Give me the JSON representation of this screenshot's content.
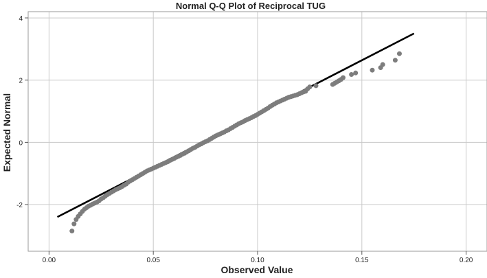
{
  "chart_data": {
    "type": "scatter",
    "title": "Normal Q-Q Plot of Reciprocal TUG",
    "xlabel": "Observed Value",
    "ylabel": "Expected Normal",
    "xlim": [
      -0.01,
      0.21
    ],
    "ylim": [
      -3.5,
      4.2
    ],
    "x_ticks": [
      "0.00",
      "0.05",
      "0.10",
      "0.15",
      "0.20"
    ],
    "x_tick_values": [
      0.0,
      0.05,
      0.1,
      0.15,
      0.2
    ],
    "y_ticks": [
      "-2",
      "0",
      "2",
      "4"
    ],
    "y_tick_values": [
      -2,
      0,
      2,
      4
    ],
    "grid": true,
    "reference_line": {
      "x": [
        0.004,
        0.175
      ],
      "y": [
        -2.4,
        3.5
      ]
    },
    "series": [
      {
        "marker_color": "#7d7d7d",
        "points": [
          [
            0.011,
            -2.85
          ],
          [
            0.012,
            -2.62
          ],
          [
            0.013,
            -2.48
          ],
          [
            0.014,
            -2.38
          ],
          [
            0.015,
            -2.3
          ],
          [
            0.016,
            -2.22
          ],
          [
            0.017,
            -2.15
          ],
          [
            0.018,
            -2.1
          ],
          [
            0.019,
            -2.05
          ],
          [
            0.02,
            -2.02
          ],
          [
            0.021,
            -1.98
          ],
          [
            0.022,
            -1.95
          ],
          [
            0.023,
            -1.92
          ],
          [
            0.024,
            -1.88
          ],
          [
            0.025,
            -1.82
          ],
          [
            0.026,
            -1.78
          ],
          [
            0.027,
            -1.73
          ],
          [
            0.028,
            -1.68
          ],
          [
            0.029,
            -1.64
          ],
          [
            0.03,
            -1.6
          ],
          [
            0.031,
            -1.56
          ],
          [
            0.032,
            -1.52
          ],
          [
            0.033,
            -1.49
          ],
          [
            0.034,
            -1.46
          ],
          [
            0.035,
            -1.42
          ],
          [
            0.036,
            -1.38
          ],
          [
            0.037,
            -1.34
          ],
          [
            0.038,
            -1.28
          ],
          [
            0.039,
            -1.24
          ],
          [
            0.04,
            -1.2
          ],
          [
            0.041,
            -1.16
          ],
          [
            0.042,
            -1.12
          ],
          [
            0.043,
            -1.08
          ],
          [
            0.044,
            -1.04
          ],
          [
            0.045,
            -1.0
          ],
          [
            0.046,
            -0.96
          ],
          [
            0.047,
            -0.92
          ],
          [
            0.048,
            -0.89
          ],
          [
            0.049,
            -0.86
          ],
          [
            0.05,
            -0.83
          ],
          [
            0.051,
            -0.8
          ],
          [
            0.052,
            -0.77
          ],
          [
            0.053,
            -0.74
          ],
          [
            0.054,
            -0.71
          ],
          [
            0.055,
            -0.68
          ],
          [
            0.056,
            -0.65
          ],
          [
            0.057,
            -0.62
          ],
          [
            0.058,
            -0.58
          ],
          [
            0.059,
            -0.55
          ],
          [
            0.06,
            -0.52
          ],
          [
            0.061,
            -0.48
          ],
          [
            0.062,
            -0.45
          ],
          [
            0.063,
            -0.42
          ],
          [
            0.064,
            -0.38
          ],
          [
            0.065,
            -0.35
          ],
          [
            0.066,
            -0.31
          ],
          [
            0.067,
            -0.27
          ],
          [
            0.068,
            -0.23
          ],
          [
            0.069,
            -0.19
          ],
          [
            0.07,
            -0.16
          ],
          [
            0.071,
            -0.12
          ],
          [
            0.072,
            -0.08
          ],
          [
            0.073,
            -0.05
          ],
          [
            0.074,
            -0.01
          ],
          [
            0.075,
            0.02
          ],
          [
            0.076,
            0.05
          ],
          [
            0.077,
            0.09
          ],
          [
            0.078,
            0.13
          ],
          [
            0.079,
            0.17
          ],
          [
            0.08,
            0.21
          ],
          [
            0.081,
            0.24
          ],
          [
            0.082,
            0.27
          ],
          [
            0.083,
            0.3
          ],
          [
            0.084,
            0.33
          ],
          [
            0.085,
            0.37
          ],
          [
            0.086,
            0.4
          ],
          [
            0.087,
            0.44
          ],
          [
            0.088,
            0.48
          ],
          [
            0.089,
            0.52
          ],
          [
            0.09,
            0.56
          ],
          [
            0.091,
            0.6
          ],
          [
            0.092,
            0.63
          ],
          [
            0.093,
            0.66
          ],
          [
            0.094,
            0.7
          ],
          [
            0.095,
            0.73
          ],
          [
            0.096,
            0.76
          ],
          [
            0.097,
            0.79
          ],
          [
            0.098,
            0.83
          ],
          [
            0.099,
            0.86
          ],
          [
            0.1,
            0.9
          ],
          [
            0.101,
            0.94
          ],
          [
            0.102,
            0.98
          ],
          [
            0.103,
            1.02
          ],
          [
            0.104,
            1.06
          ],
          [
            0.105,
            1.1
          ],
          [
            0.106,
            1.15
          ],
          [
            0.107,
            1.19
          ],
          [
            0.108,
            1.23
          ],
          [
            0.109,
            1.27
          ],
          [
            0.11,
            1.3
          ],
          [
            0.111,
            1.33
          ],
          [
            0.112,
            1.36
          ],
          [
            0.113,
            1.39
          ],
          [
            0.114,
            1.42
          ],
          [
            0.115,
            1.45
          ],
          [
            0.116,
            1.47
          ],
          [
            0.117,
            1.49
          ],
          [
            0.118,
            1.51
          ],
          [
            0.119,
            1.53
          ],
          [
            0.12,
            1.56
          ],
          [
            0.121,
            1.59
          ],
          [
            0.122,
            1.62
          ],
          [
            0.123,
            1.64
          ],
          [
            0.124,
            1.72
          ],
          [
            0.125,
            1.78
          ],
          [
            0.128,
            1.82
          ],
          [
            0.136,
            1.86
          ],
          [
            0.137,
            1.9
          ],
          [
            0.138,
            1.94
          ],
          [
            0.139,
            1.98
          ],
          [
            0.14,
            2.02
          ],
          [
            0.141,
            2.08
          ],
          [
            0.145,
            2.18
          ],
          [
            0.147,
            2.23
          ],
          [
            0.155,
            2.32
          ],
          [
            0.159,
            2.4
          ],
          [
            0.16,
            2.5
          ],
          [
            0.166,
            2.64
          ],
          [
            0.168,
            2.85
          ]
        ]
      }
    ]
  }
}
